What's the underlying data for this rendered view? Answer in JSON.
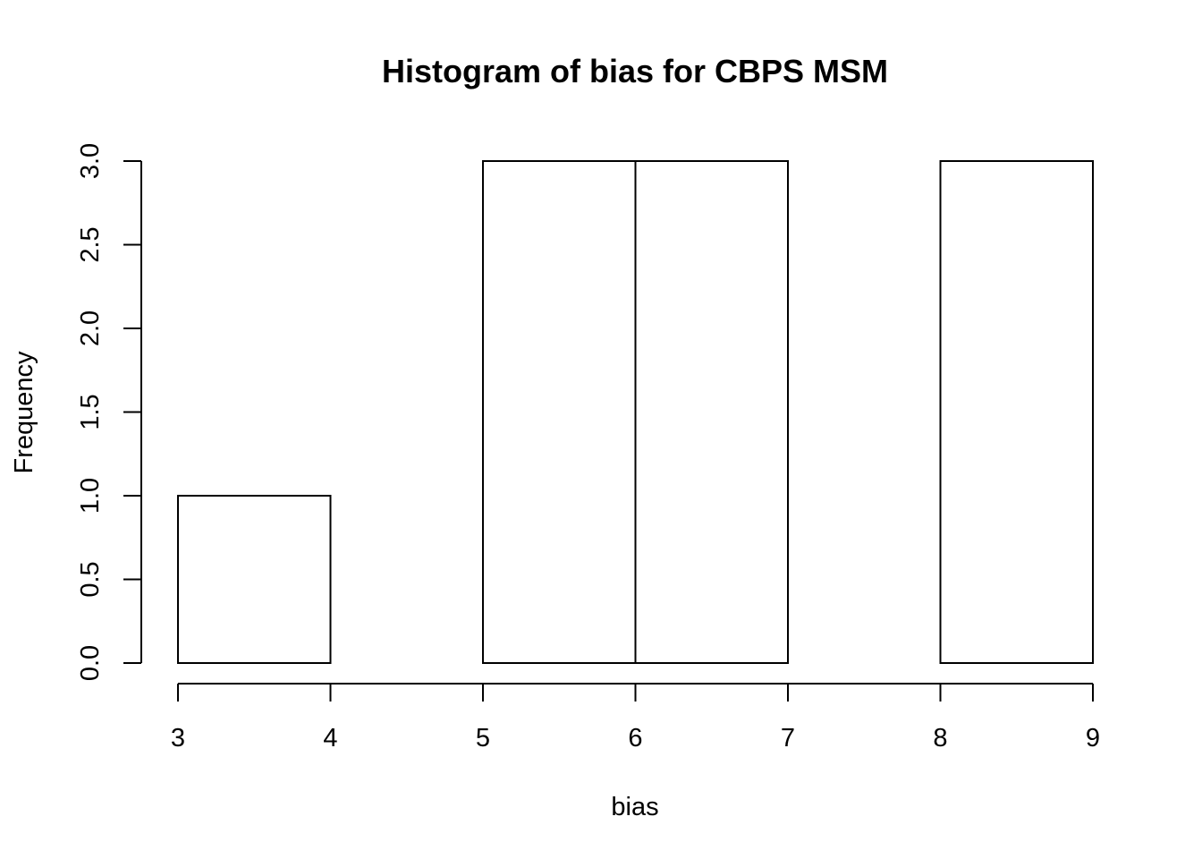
{
  "chart_data": {
    "type": "bar",
    "title": "Histogram of bias for CBPS MSM",
    "xlabel": "bias",
    "ylabel": "Frequency",
    "bins": [
      {
        "x0": 3,
        "x1": 4,
        "count": 1
      },
      {
        "x0": 4,
        "x1": 5,
        "count": 0
      },
      {
        "x0": 5,
        "x1": 6,
        "count": 3
      },
      {
        "x0": 6,
        "x1": 7,
        "count": 3
      },
      {
        "x0": 7,
        "x1": 8,
        "count": 0
      },
      {
        "x0": 8,
        "x1": 9,
        "count": 3
      }
    ],
    "xlim": [
      3,
      9
    ],
    "ylim": [
      0,
      3
    ],
    "x_ticks": [
      "3",
      "4",
      "5",
      "6",
      "7",
      "8",
      "9"
    ],
    "y_ticks": [
      "0.0",
      "0.5",
      "1.0",
      "1.5",
      "2.0",
      "2.5",
      "3.0"
    ],
    "grid": false,
    "legend": "none",
    "bar_fill": "#ffffff",
    "bar_stroke": "#000000"
  }
}
